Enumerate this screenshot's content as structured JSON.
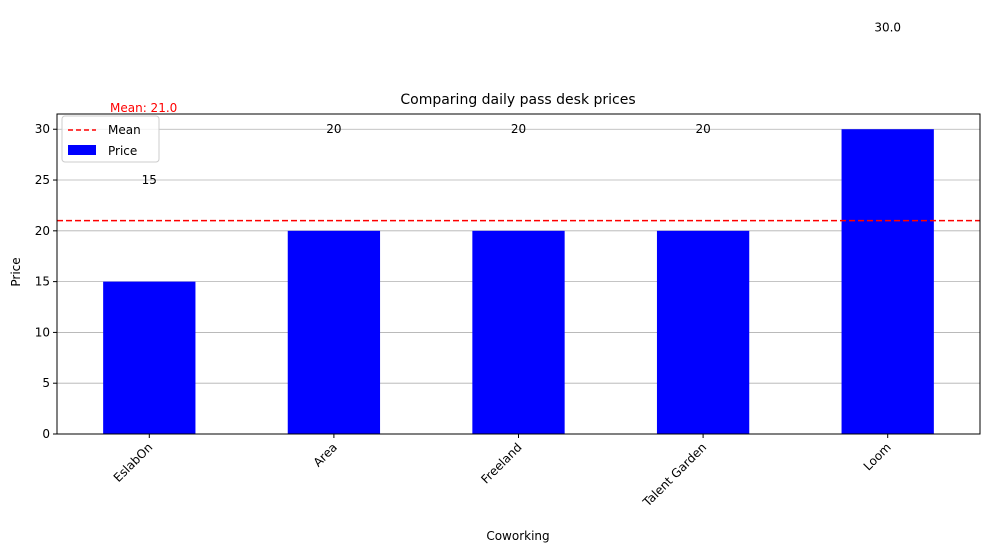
{
  "chart_data": {
    "type": "bar",
    "title": "Comparing daily pass desk prices",
    "xlabel": "Coworking",
    "ylabel": "Price",
    "categories": [
      "EslabOn",
      "Area",
      "Freeland",
      "Talent Garden",
      "Loom"
    ],
    "series": [
      {
        "name": "Price",
        "values": [
          15,
          20,
          20,
          20,
          30
        ],
        "color": "#0000ff"
      }
    ],
    "value_labels": [
      "15",
      "20",
      "20",
      "20",
      "30.0"
    ],
    "yticks": [
      0,
      5,
      10,
      15,
      20,
      25,
      30
    ],
    "ylim": [
      0,
      31.5
    ],
    "grid": "y",
    "mean": {
      "value": 21.0,
      "label": "Mean",
      "annotation": "Mean: 21.0",
      "color": "#ff0000"
    },
    "legend": {
      "placement": "top-left",
      "entries": [
        "Mean",
        "Price"
      ]
    }
  }
}
